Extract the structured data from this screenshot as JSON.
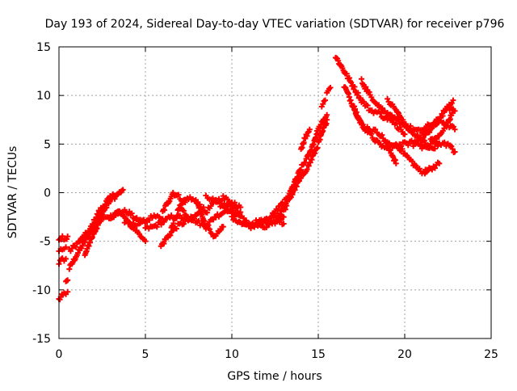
{
  "chart_data": {
    "type": "scatter",
    "title": "Day 193 of 2024, Sidereal Day-to-day VTEC variation (SDTVAR) for receiver p796",
    "xlabel": "GPS time / hours",
    "ylabel": "SDTVAR / TECUs",
    "xlim": [
      0,
      25
    ],
    "ylim": [
      -15,
      15
    ],
    "xticks": [
      0,
      5,
      10,
      15,
      20,
      25
    ],
    "yticks": [
      -15,
      -10,
      -5,
      0,
      5,
      10,
      15
    ],
    "xtick_labels": [
      "0",
      "5",
      "10",
      "15",
      "20",
      "25"
    ],
    "ytick_labels": [
      "-15",
      "-10",
      "-5",
      "0",
      "5",
      "10",
      "15"
    ],
    "grid": true,
    "marker": "plus",
    "series": [
      {
        "name": "SDTVAR",
        "color": "#ff0000",
        "tracks": [
          {
            "x": [
              0.0,
              0.1,
              0.3,
              0.5
            ],
            "y": [
              -11,
              -10.8,
              -10.4,
              -10.2
            ]
          },
          {
            "x": [
              0.4,
              0.5
            ],
            "y": [
              -9.3,
              -9.0
            ]
          },
          {
            "x": [
              0.0,
              0.2,
              0.4,
              0.5
            ],
            "y": [
              -5.0,
              -4.6,
              -4.8,
              -4.5
            ]
          },
          {
            "x": [
              0.0,
              0.2,
              0.4
            ],
            "y": [
              -7.2,
              -6.9,
              -6.8
            ]
          },
          {
            "x": [
              0.0,
              0.2,
              0.4
            ],
            "y": [
              -6.0,
              -5.8,
              -5.6
            ]
          },
          {
            "x": [
              0.6,
              1.0,
              1.5,
              2.0,
              2.5,
              3.0,
              3.3,
              3.5,
              3.7
            ],
            "y": [
              -7.8,
              -6.5,
              -5.0,
              -3.5,
              -2.0,
              -0.8,
              -0.3,
              0.0,
              0.3
            ]
          },
          {
            "x": [
              0.6,
              1.2,
              1.8,
              2.3,
              2.8,
              3.2,
              3.6
            ],
            "y": [
              -6.0,
              -5.0,
              -3.8,
              -2.0,
              -0.8,
              -0.2,
              0.1
            ]
          },
          {
            "x": [
              1.5,
              1.8,
              2.2,
              2.6,
              3.0,
              3.5
            ],
            "y": [
              -6.5,
              -5.0,
              -3.5,
              -2.5,
              -2.5,
              -1.9
            ]
          },
          {
            "x": [
              3.0,
              3.5,
              4.0,
              4.5,
              5.0
            ],
            "y": [
              -2.5,
              -1.9,
              -2.0,
              -2.8,
              -3.0
            ]
          },
          {
            "x": [
              3.5,
              4.0,
              4.5,
              5.0
            ],
            "y": [
              -2.0,
              -3.0,
              -4.0,
              -5.0
            ]
          },
          {
            "x": [
              3.8,
              4.3,
              4.9,
              5.4,
              6.0
            ],
            "y": [
              -3.0,
              -3.3,
              -3.0,
              -2.5,
              -2.7
            ]
          },
          {
            "x": [
              5.0,
              5.5,
              6.0,
              6.5,
              7.0,
              7.5
            ],
            "y": [
              -3.7,
              -3.5,
              -3.0,
              -2.5,
              -2.5,
              -2.8
            ]
          },
          {
            "x": [
              6.0,
              6.3,
              6.6,
              7.0,
              7.3
            ],
            "y": [
              -2.0,
              -1.0,
              0.0,
              -0.5,
              -1.0
            ]
          },
          {
            "x": [
              5.9,
              6.3,
              6.8,
              7.3,
              7.8,
              8.3
            ],
            "y": [
              -5.5,
              -4.5,
              -3.5,
              -3.0,
              -2.5,
              -1.8
            ]
          },
          {
            "x": [
              6.5,
              7.0,
              7.5,
              8.0,
              8.5,
              9.0,
              9.5,
              10.0
            ],
            "y": [
              -3.5,
              -1.5,
              -0.5,
              -1.0,
              -2.0,
              -1.0,
              -0.5,
              -1.0
            ]
          },
          {
            "x": [
              7.0,
              7.5,
              8.0,
              8.5,
              9.0,
              9.5,
              10.0,
              10.5
            ],
            "y": [
              -1.5,
              -2.5,
              -3.0,
              -3.5,
              -2.5,
              -2.0,
              -1.5,
              -2.0
            ]
          },
          {
            "x": [
              8.0,
              8.5,
              9.0,
              9.5
            ],
            "y": [
              -1.0,
              -3.5,
              -4.5,
              -3.5
            ]
          },
          {
            "x": [
              8.5,
              9.0,
              9.5,
              10.0,
              10.5
            ],
            "y": [
              -0.5,
              -0.8,
              -1.5,
              -1.0,
              -1.5
            ]
          },
          {
            "x": [
              9.5,
              10.0,
              10.5,
              11.0,
              11.5,
              12.0
            ],
            "y": [
              -1.2,
              -2.0,
              -2.5,
              -3.2,
              -3.0,
              -2.8
            ]
          },
          {
            "x": [
              10.0,
              10.5,
              11.0,
              11.5,
              12.0,
              12.5,
              13.0
            ],
            "y": [
              -2.5,
              -3.0,
              -3.5,
              -3.2,
              -3.5,
              -3.0,
              -2.5
            ]
          },
          {
            "x": [
              11.0,
              11.5,
              12.0,
              12.5,
              13.0
            ],
            "y": [
              -3.5,
              -3.2,
              -2.8,
              -2.5,
              -3.2
            ]
          },
          {
            "x": [
              12.0,
              12.5,
              13.0,
              13.5
            ],
            "y": [
              -3.0,
              -2.0,
              -1.0,
              -0.2
            ]
          },
          {
            "x": [
              12.5,
              13.0,
              13.5,
              14.0
            ],
            "y": [
              -3.0,
              -1.5,
              0.5,
              2.0
            ]
          },
          {
            "x": [
              13.0,
              13.5,
              14.0,
              14.5,
              15.0,
              15.5
            ],
            "y": [
              -2.0,
              0.5,
              2.5,
              4.0,
              6.5,
              8.0
            ]
          },
          {
            "x": [
              13.5,
              14.0,
              14.5,
              15.0,
              15.5
            ],
            "y": [
              0.0,
              1.5,
              3.0,
              5.0,
              7.5
            ]
          },
          {
            "x": [
              14.0,
              14.2,
              14.5
            ],
            "y": [
              4.5,
              5.5,
              6.5
            ]
          },
          {
            "x": [
              15.2,
              15.4
            ],
            "y": [
              9.0,
              9.5
            ]
          },
          {
            "x": [
              15.5,
              15.7
            ],
            "y": [
              10.5,
              10.8
            ]
          },
          {
            "x": [
              16.0,
              16.5,
              17.0,
              17.5,
              18.0,
              18.5,
              19.0
            ],
            "y": [
              14.0,
              12.5,
              11.0,
              9.5,
              8.5,
              8.2,
              7.5
            ]
          },
          {
            "x": [
              16.5,
              17.0,
              17.5,
              18.0,
              18.5,
              19.0,
              19.5
            ],
            "y": [
              11.0,
              9.0,
              7.0,
              6.5,
              6.2,
              5.0,
              3.0
            ]
          },
          {
            "x": [
              17.0,
              17.5,
              18.0,
              18.5,
              19.0,
              19.5
            ],
            "y": [
              9.0,
              7.0,
              6.0,
              5.0,
              4.5,
              5.0
            ]
          },
          {
            "x": [
              17.5,
              18.0,
              18.5,
              19.0,
              19.5,
              20.0
            ],
            "y": [
              11.5,
              10.0,
              9.0,
              8.0,
              7.0,
              6.0
            ]
          },
          {
            "x": [
              19.0,
              19.5,
              20.0,
              20.5,
              21.0,
              21.5
            ],
            "y": [
              8.0,
              7.5,
              7.0,
              6.5,
              6.2,
              6.5
            ]
          },
          {
            "x": [
              19.0,
              19.5,
              20.0,
              20.5,
              21.0
            ],
            "y": [
              5.0,
              4.8,
              5.0,
              5.2,
              4.8
            ]
          },
          {
            "x": [
              19.5,
              20.0,
              20.5,
              21.0,
              21.5,
              22.0
            ],
            "y": [
              5.0,
              4.0,
              3.0,
              2.0,
              2.5,
              3.0
            ]
          },
          {
            "x": [
              19.0,
              19.5,
              20.0,
              20.5,
              21.0,
              21.5,
              22.0
            ],
            "y": [
              9.5,
              8.5,
              7.0,
              6.0,
              5.5,
              4.5,
              5.0
            ]
          },
          {
            "x": [
              20.5,
              21.0,
              21.5,
              22.0,
              22.5,
              22.8
            ],
            "y": [
              5.0,
              5.5,
              6.5,
              7.5,
              9.0,
              9.5
            ]
          },
          {
            "x": [
              21.0,
              21.5,
              22.0,
              22.5,
              22.8
            ],
            "y": [
              4.5,
              5.0,
              6.0,
              7.0,
              8.5
            ]
          },
          {
            "x": [
              21.5,
              22.0,
              22.5,
              22.9
            ],
            "y": [
              5.5,
              5.0,
              5.0,
              4.2
            ]
          },
          {
            "x": [
              21.0,
              21.5,
              22.0,
              22.5,
              22.9
            ],
            "y": [
              6.5,
              7.0,
              7.5,
              7.0,
              6.5
            ]
          },
          {
            "x": [
              22.6,
              22.9
            ],
            "y": [
              8.6,
              8.4
            ]
          },
          {
            "x": [
              21.2,
              21.4
            ],
            "y": [
              2.3,
              2.4
            ]
          }
        ]
      }
    ]
  }
}
